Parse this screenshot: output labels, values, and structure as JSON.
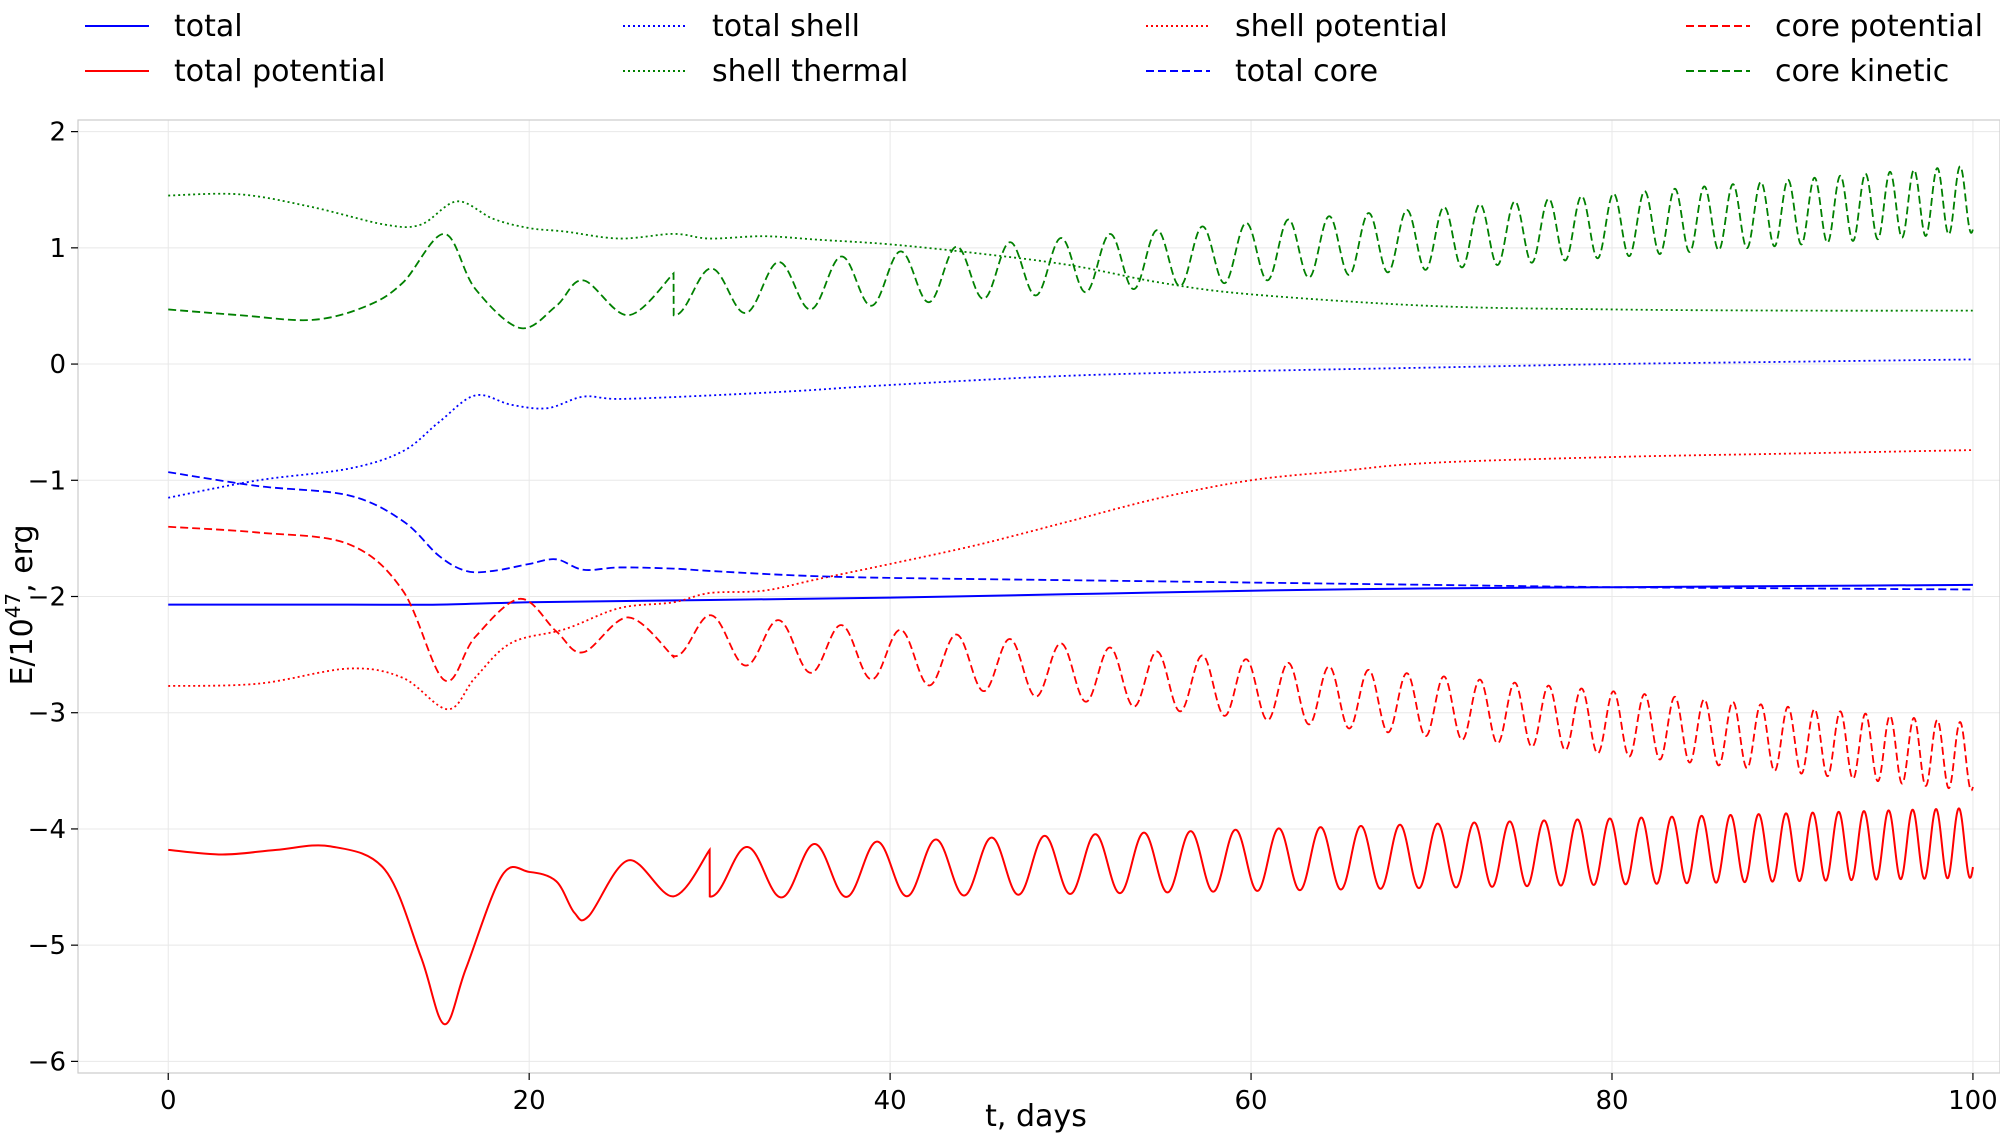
{
  "chart_data": {
    "type": "line",
    "title": "",
    "xlabel": "t, days",
    "ylabel_base": "E/10",
    "ylabel_exp": "47",
    "ylabel_unit": ", erg",
    "xlim": [
      -5,
      101.5
    ],
    "ylim": [
      -6.1,
      2.1
    ],
    "grid": true,
    "legend_position": "top",
    "x_ticks": [
      0,
      20,
      40,
      60,
      80,
      100
    ],
    "x_tick_labels": [
      "0",
      "20",
      "40",
      "60",
      "80",
      "100"
    ],
    "y_ticks": [
      2,
      1,
      0,
      -1,
      -2,
      -3,
      -4,
      -5,
      -6
    ],
    "y_tick_labels": [
      "2",
      "1",
      "0",
      "−1",
      "−2",
      "−3",
      "−4",
      "−5",
      "−6"
    ],
    "series": [
      {
        "name": "total",
        "color": "#0000ff",
        "style": "solid",
        "x": [
          0,
          10,
          15,
          20,
          30,
          40,
          50,
          60,
          70,
          80,
          90,
          100
        ],
        "y": [
          -2.07,
          -2.07,
          -2.07,
          -2.05,
          -2.03,
          -2.01,
          -1.98,
          -1.95,
          -1.93,
          -1.92,
          -1.91,
          -1.9
        ]
      },
      {
        "name": "total potential",
        "color": "#ff0000",
        "style": "solid",
        "x": [
          0,
          3,
          6,
          9,
          12,
          14,
          15.3,
          16.5,
          18.5,
          20,
          21.5,
          22.5,
          23.3,
          25.5,
          28,
          30
        ],
        "y": [
          -4.18,
          -4.22,
          -4.18,
          -4.15,
          -4.35,
          -5.1,
          -5.68,
          -5.2,
          -4.4,
          -4.37,
          -4.45,
          -4.72,
          -4.75,
          -4.27,
          -4.58,
          -4.18
        ],
        "osc": {
          "x_start": 30,
          "x_end": 100,
          "center_start": -4.38,
          "center_end": -4.12,
          "amp_start": 0.2,
          "amp_end": 0.3,
          "period_start": 4.4,
          "period_end": 1.23
        }
      },
      {
        "name": "total shell",
        "color": "#0000ff",
        "style": "dotted",
        "x": [
          0,
          5,
          10,
          13,
          15,
          17,
          19,
          21,
          23,
          25,
          30,
          35,
          40,
          50,
          60,
          70,
          80,
          90,
          100
        ],
        "y": [
          -1.15,
          -1.0,
          -0.9,
          -0.75,
          -0.5,
          -0.27,
          -0.35,
          -0.38,
          -0.28,
          -0.3,
          -0.27,
          -0.23,
          -0.18,
          -0.1,
          -0.06,
          -0.03,
          0,
          0.02,
          0.04
        ]
      },
      {
        "name": "shell thermal",
        "color": "#008000",
        "style": "dotted",
        "x": [
          0,
          4,
          8,
          12,
          14,
          16,
          18,
          20,
          22,
          25,
          28,
          30,
          33,
          36,
          40,
          45,
          50,
          55,
          60,
          70,
          80,
          90,
          100
        ],
        "y": [
          1.45,
          1.46,
          1.35,
          1.2,
          1.2,
          1.4,
          1.25,
          1.17,
          1.14,
          1.08,
          1.12,
          1.08,
          1.1,
          1.07,
          1.03,
          0.95,
          0.85,
          0.7,
          0.6,
          0.5,
          0.47,
          0.46,
          0.46
        ]
      },
      {
        "name": "shell potential",
        "color": "#ff0000",
        "style": "dotted",
        "x": [
          0,
          5,
          10,
          13,
          15.5,
          17,
          19,
          22,
          25,
          28,
          30,
          33,
          36,
          40,
          45,
          50,
          55,
          60,
          65,
          70,
          80,
          90,
          100
        ],
        "y": [
          -2.77,
          -2.75,
          -2.62,
          -2.7,
          -2.97,
          -2.7,
          -2.4,
          -2.28,
          -2.1,
          -2.05,
          -1.97,
          -1.95,
          -1.85,
          -1.72,
          -1.55,
          -1.35,
          -1.15,
          -1.0,
          -0.92,
          -0.85,
          -0.8,
          -0.77,
          -0.74
        ]
      },
      {
        "name": "total core",
        "color": "#0000ff",
        "style": "dashed",
        "x": [
          0,
          5,
          10,
          13,
          15,
          16.5,
          18,
          20,
          21.5,
          23,
          25,
          28,
          30,
          35,
          40,
          50,
          60,
          70,
          80,
          90,
          100
        ],
        "y": [
          -0.93,
          -1.05,
          -1.13,
          -1.35,
          -1.65,
          -1.78,
          -1.78,
          -1.72,
          -1.68,
          -1.77,
          -1.75,
          -1.76,
          -1.78,
          -1.82,
          -1.84,
          -1.86,
          -1.88,
          -1.9,
          -1.92,
          -1.93,
          -1.94
        ]
      },
      {
        "name": "core potential",
        "color": "#ff0000",
        "style": "dashed",
        "x": [
          0,
          5,
          10,
          13,
          15.3,
          17,
          19.5,
          21.5,
          23,
          25.5,
          28
        ],
        "y": [
          -1.4,
          -1.45,
          -1.55,
          -1.95,
          -2.72,
          -2.35,
          -2.02,
          -2.3,
          -2.48,
          -2.18,
          -2.52
        ],
        "osc": {
          "x_start": 28,
          "x_end": 100,
          "center_start": -2.33,
          "center_end": -3.38,
          "amp_start": 0.18,
          "amp_end": 0.29,
          "period_start": 4.4,
          "period_end": 1.23
        }
      },
      {
        "name": "core kinetic",
        "color": "#008000",
        "style": "dashed",
        "x": [
          0,
          4,
          8,
          11,
          13,
          15.3,
          17,
          19.5,
          21.5,
          23,
          25.5,
          28
        ],
        "y": [
          0.47,
          0.42,
          0.38,
          0.5,
          0.7,
          1.12,
          0.65,
          0.31,
          0.5,
          0.72,
          0.42,
          0.78
        ],
        "osc": {
          "x_start": 28,
          "x_end": 100,
          "center_start": 0.6,
          "center_end": 1.42,
          "amp_start": 0.18,
          "amp_end": 0.29,
          "period_start": 4.4,
          "period_end": 1.23
        }
      }
    ],
    "legend_order": [
      [
        "total",
        "total shell",
        "shell potential",
        "core potential"
      ],
      [
        "total potential",
        "shell thermal",
        "total core",
        "core kinetic"
      ]
    ]
  }
}
